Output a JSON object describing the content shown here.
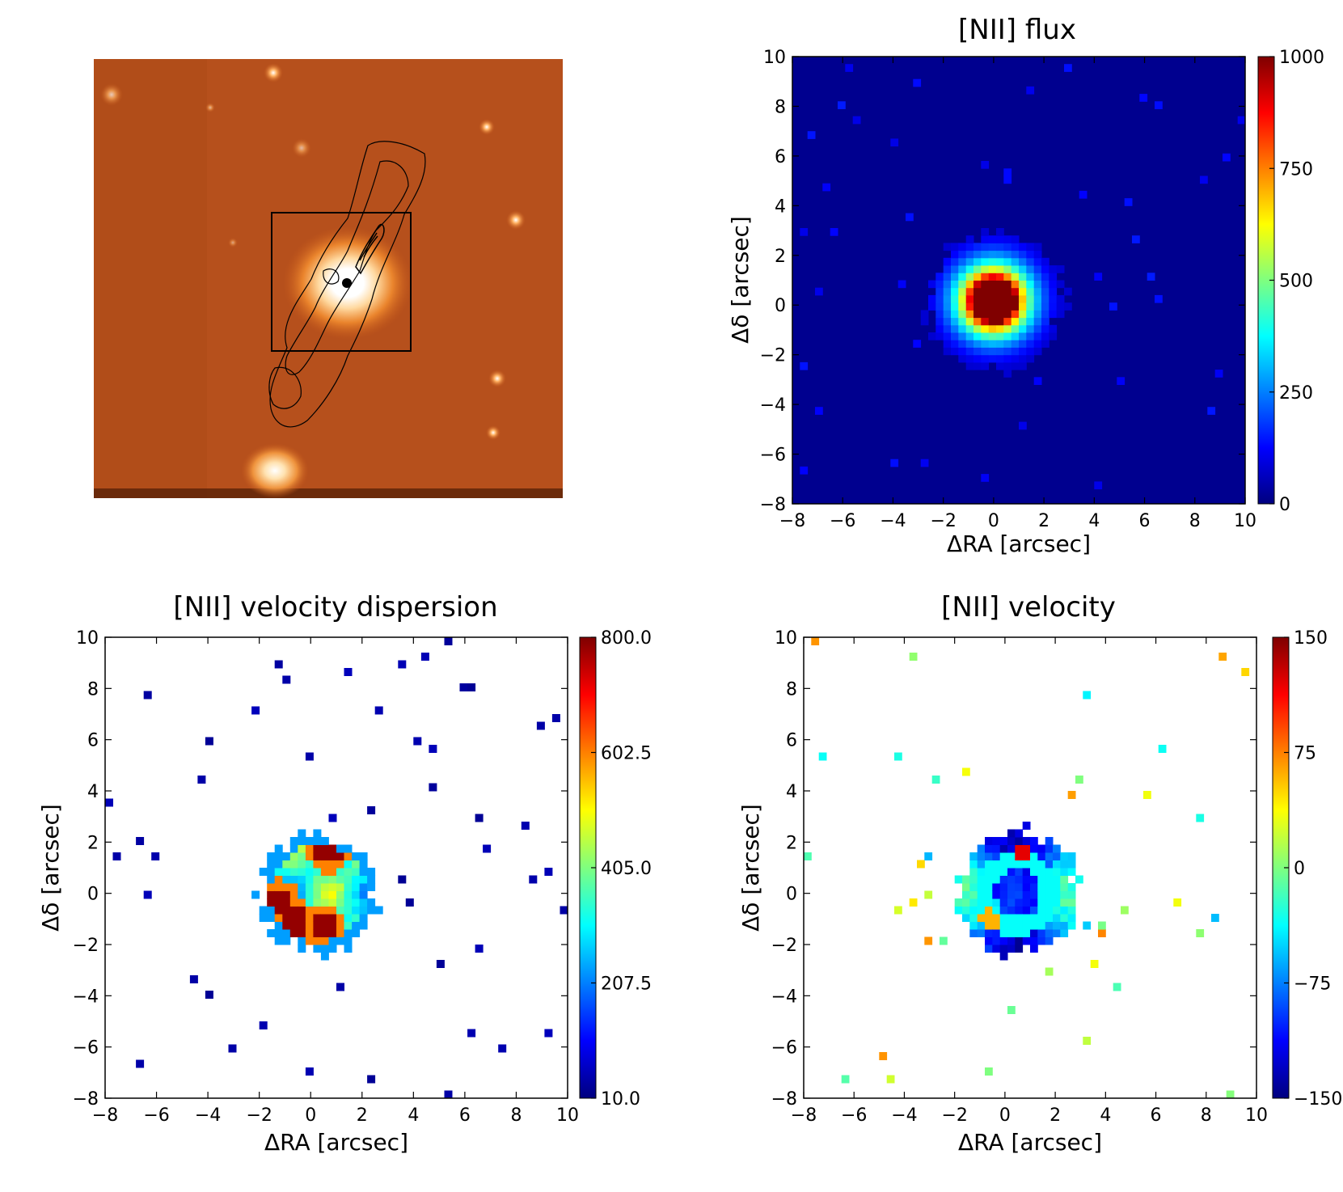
{
  "figure": {
    "panel_image": {
      "description_icon": "galaxy-image-icon"
    }
  },
  "chart_data": [
    {
      "type": "heatmap",
      "title": "[NII] flux",
      "xlabel": "ΔRA [arcsec]",
      "ylabel": "Δδ [arcsec]",
      "xlim": [
        -8,
        10
      ],
      "ylim": [
        -8,
        10
      ],
      "xticks": [
        "−8",
        "−6",
        "−4",
        "−2",
        "0",
        "2",
        "4",
        "6",
        "8",
        "10"
      ],
      "yticks": [
        "−8",
        "−6",
        "−4",
        "−2",
        "0",
        "2",
        "4",
        "6",
        "8",
        "10"
      ],
      "colorbar": {
        "range": [
          0,
          1000
        ],
        "ticks": [
          "0",
          "250",
          "500",
          "750",
          "1000"
        ],
        "colormap": "jet"
      },
      "background": "#00008f",
      "structure": {
        "center": [
          0.0,
          0.2
        ],
        "core_radius_arcsec": 0.9,
        "halo_radius_arcsec": 2.7,
        "peak": 1000
      }
    },
    {
      "type": "heatmap",
      "title": "[NII] velocity dispersion",
      "xlabel": "ΔRA [arcsec]",
      "ylabel": "Δδ [arcsec]",
      "xlim": [
        -8,
        10
      ],
      "ylim": [
        -8,
        10
      ],
      "xticks": [
        "−8",
        "−6",
        "−4",
        "−2",
        "0",
        "2",
        "4",
        "6",
        "8",
        "10"
      ],
      "yticks": [
        "−8",
        "−6",
        "−4",
        "−2",
        "0",
        "2",
        "4",
        "6",
        "8",
        "10"
      ],
      "colorbar": {
        "range": [
          10.0,
          800.0
        ],
        "ticks": [
          "10.0",
          "207.5",
          "405.0",
          "602.5",
          "800.0"
        ],
        "colormap": "jet"
      },
      "background": "#ffffff",
      "structure": {
        "center": [
          0.3,
          0.0
        ],
        "blob_radius_arcsec": 2.3,
        "hotspots": [
          [
            0.7,
            1.7
          ],
          [
            -1.3,
            -0.3
          ],
          [
            -0.6,
            -1.1
          ],
          [
            0.5,
            -1.3
          ]
        ]
      }
    },
    {
      "type": "heatmap",
      "title": "[NII] velocity",
      "xlabel": "ΔRA [arcsec]",
      "ylabel": "Δδ [arcsec]",
      "xlim": [
        -8,
        10
      ],
      "ylim": [
        -8,
        10
      ],
      "xticks": [
        "−8",
        "−6",
        "−4",
        "−2",
        "0",
        "2",
        "4",
        "6",
        "8",
        "10"
      ],
      "yticks": [
        "−8",
        "−6",
        "−4",
        "−2",
        "0",
        "2",
        "4",
        "6",
        "8",
        "10"
      ],
      "colorbar": {
        "range": [
          -150,
          150
        ],
        "ticks": [
          "−150",
          "−75",
          "0",
          "75",
          "150"
        ],
        "colormap": "jet"
      },
      "background": "#ffffff",
      "structure": {
        "center": [
          0.5,
          0.0
        ],
        "blob_radius_arcsec": 2.4
      }
    }
  ]
}
